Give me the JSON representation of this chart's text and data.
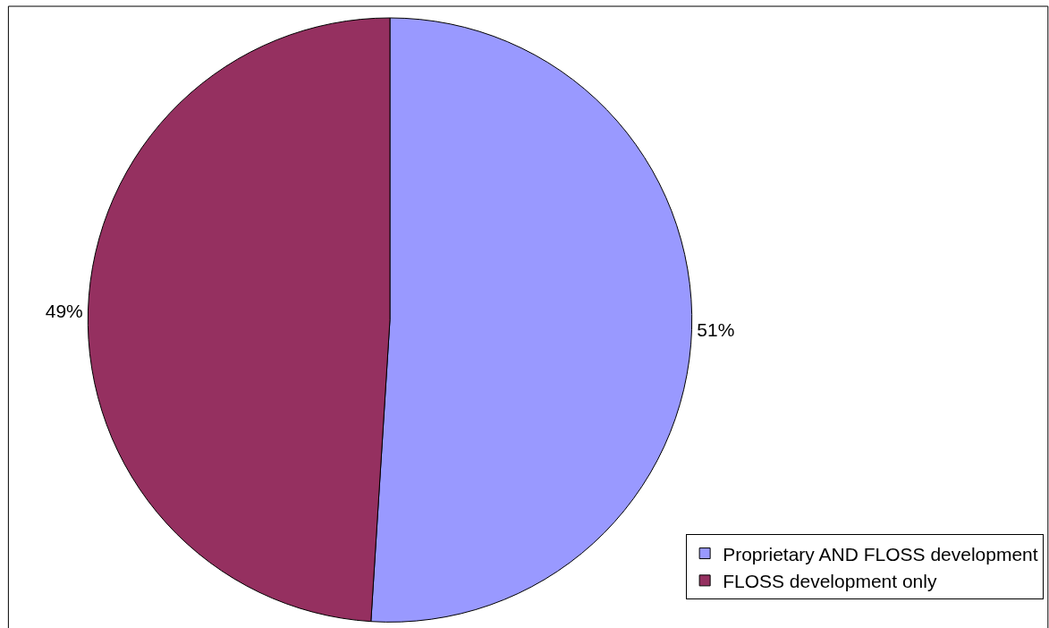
{
  "chart_data": {
    "type": "pie",
    "categories": [
      "Proprietary AND FLOSS development",
      "FLOSS development only"
    ],
    "values": [
      51,
      49
    ],
    "value_labels": [
      "51%",
      "49%"
    ],
    "colors": [
      "#9999ff",
      "#953060"
    ],
    "legend": "bottom right"
  }
}
